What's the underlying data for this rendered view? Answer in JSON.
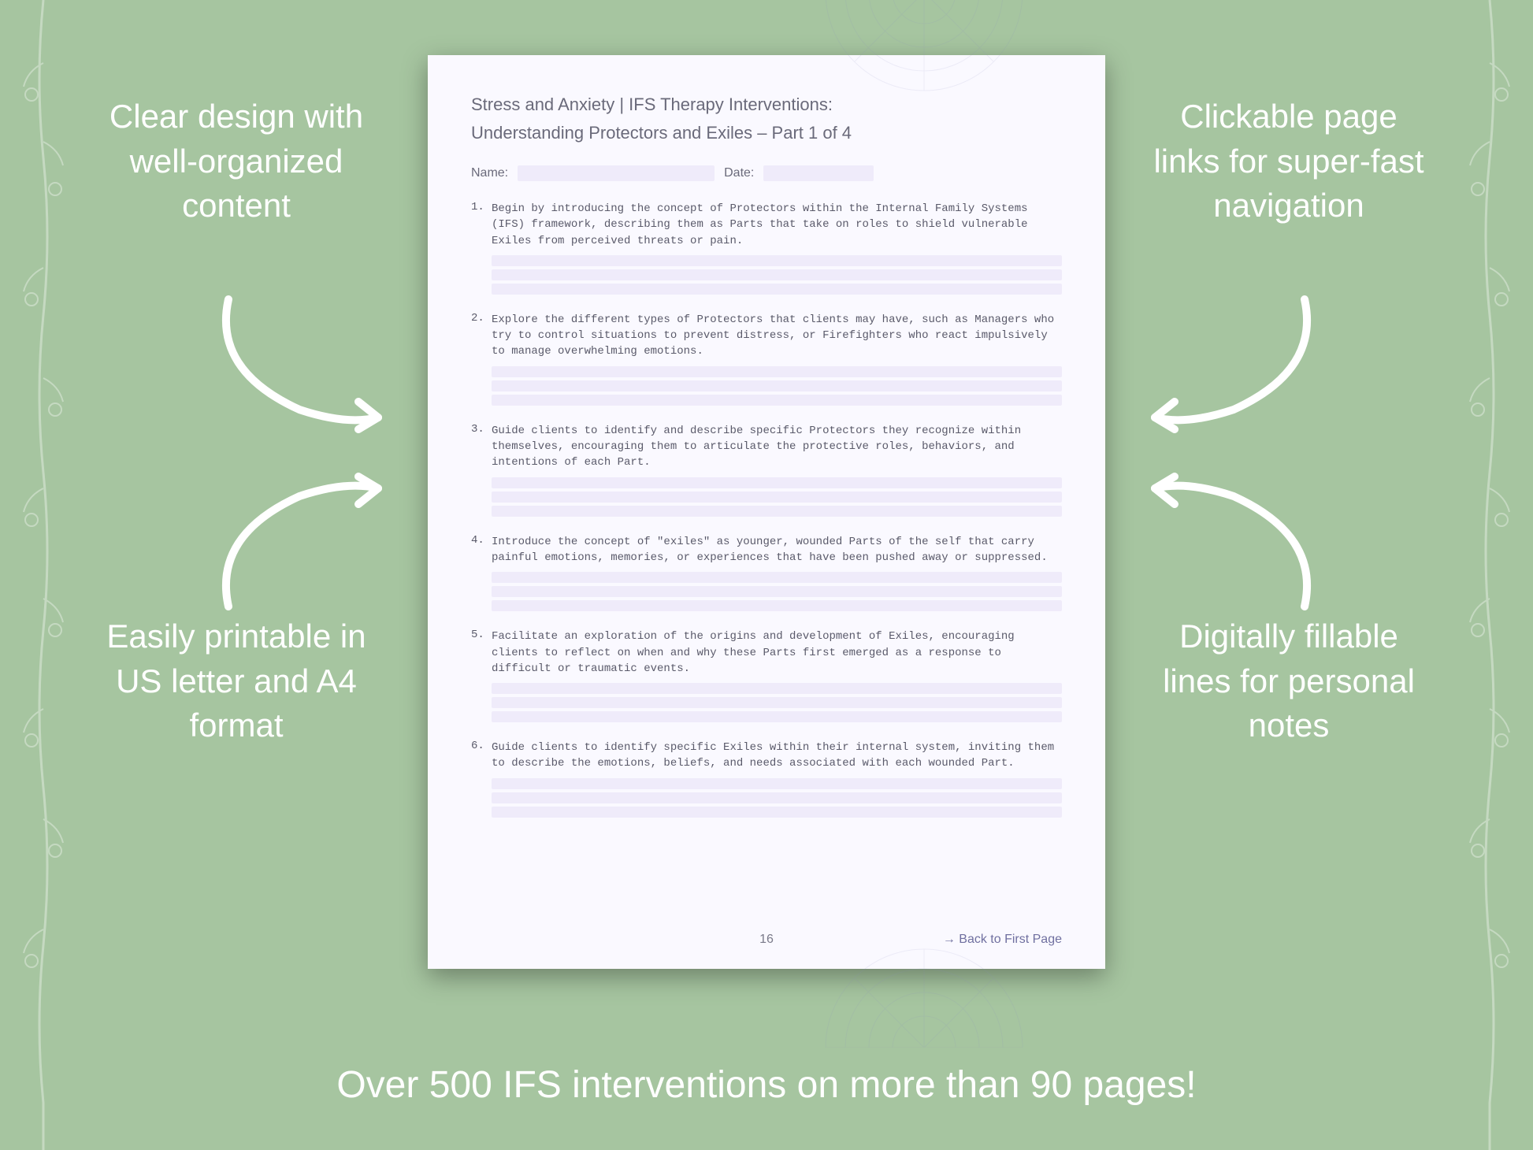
{
  "background_color": "#a6c5a0",
  "callouts": {
    "top_left": "Clear design with well-organized content",
    "top_right": "Clickable page links for super-fast navigation",
    "bottom_left": "Easily printable in US letter and A4 format",
    "bottom_right": "Digitally fillable lines for personal notes"
  },
  "callout_style": {
    "color": "#ffffff",
    "fontsize": 42,
    "font_weight": 300
  },
  "bottom_banner": "Over 500 IFS interventions on more than 90 pages!",
  "bottom_banner_style": {
    "color": "#ffffff",
    "fontsize": 48,
    "font_weight": 500
  },
  "page": {
    "background_color": "#faf9ff",
    "fill_color": "#efebfa",
    "text_color": "#5a5a6a",
    "heading_color": "#6a6a7a",
    "title": "Stress and Anxiety | IFS Therapy Interventions:",
    "subtitle": "Understanding Protectors and Exiles – Part 1 of 4",
    "name_label": "Name:",
    "date_label": "Date:",
    "items": [
      {
        "num": "1.",
        "text": "Begin by introducing the concept of Protectors within the Internal Family Systems (IFS) framework, describing them as Parts that take on roles to shield vulnerable Exiles from perceived threats or pain."
      },
      {
        "num": "2.",
        "text": "Explore the different types of Protectors that clients may have, such as Managers who try to control situations to prevent distress, or Firefighters who react impulsively to manage overwhelming emotions."
      },
      {
        "num": "3.",
        "text": "Guide clients to identify and describe specific Protectors they recognize within themselves, encouraging them to articulate the protective roles, behaviors, and intentions of each Part."
      },
      {
        "num": "4.",
        "text": "Introduce the concept of \"exiles\" as younger, wounded Parts of the self that carry painful emotions, memories, or experiences that have been pushed away or suppressed."
      },
      {
        "num": "5.",
        "text": "Facilitate an exploration of the origins and development of Exiles, encouraging clients to reflect on when and why these Parts first emerged as a response to difficult or traumatic events."
      },
      {
        "num": "6.",
        "text": "Guide clients to identify specific Exiles within their internal system, inviting them to describe the emotions, beliefs, and needs associated with each wounded Part."
      }
    ],
    "page_number": "16",
    "back_link": "→ Back to First Page"
  }
}
